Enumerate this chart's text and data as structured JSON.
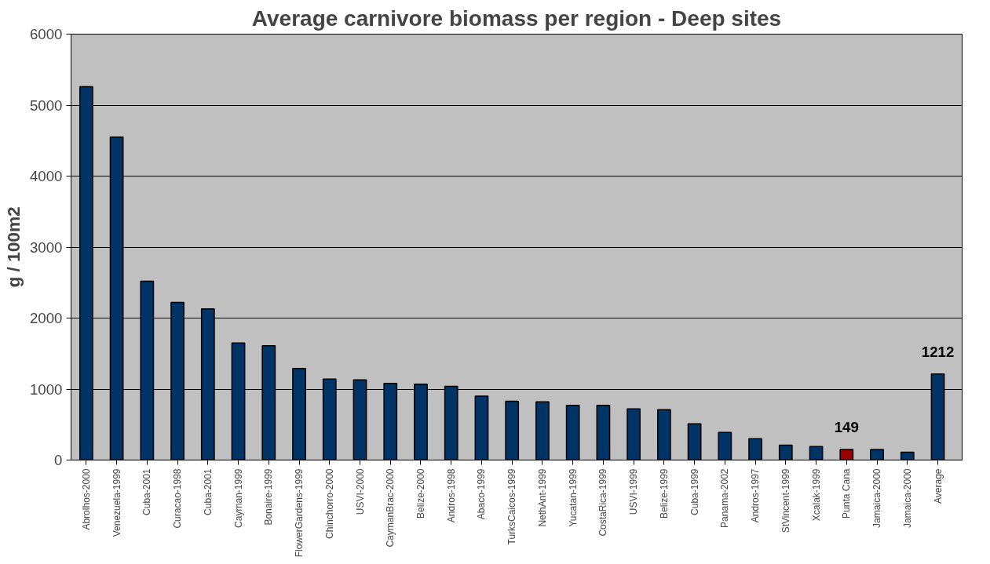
{
  "chart_data": {
    "type": "bar",
    "title": "Average carnivore biomass per region - Deep sites",
    "ylabel": "g / 100m2",
    "categories": [
      "Abrolhos-2000",
      "Venezuela-1999",
      "Cuba-2001",
      "Curacao-1998",
      "Cuba-2001",
      "Cayman-1999",
      "Bonaire-1999",
      "FlowerGardens-1999",
      "Chinchorro-2000",
      "USVI-2000",
      "CaymanBrac-2000",
      "Belize-2000",
      "Andros-1998",
      "Abaco-1999",
      "TurksCaicos-1999",
      "NethAnt-1999",
      "Yucatan-1999",
      "CostaRica-1999",
      "USVI-1999",
      "Belize-1999",
      "Cuba-1999",
      "Panama-2002",
      "Andros-1997",
      "StVincent-1999",
      "Xcalak-1999",
      "Punta Cana",
      "Jamaica-2000",
      "Jamaica-2000",
      "Average"
    ],
    "values": [
      5260,
      4550,
      2520,
      2220,
      2130,
      1650,
      1610,
      1290,
      1140,
      1130,
      1080,
      1070,
      1040,
      900,
      830,
      820,
      770,
      770,
      720,
      710,
      510,
      390,
      300,
      210,
      190,
      149,
      150,
      110,
      1212
    ],
    "colors": [
      "#003366",
      "#003366",
      "#003366",
      "#003366",
      "#003366",
      "#003366",
      "#003366",
      "#003366",
      "#003366",
      "#003366",
      "#003366",
      "#003366",
      "#003366",
      "#003366",
      "#003366",
      "#003366",
      "#003366",
      "#003366",
      "#003366",
      "#003366",
      "#003366",
      "#003366",
      "#003366",
      "#003366",
      "#003366",
      "#990000",
      "#003366",
      "#003366",
      "#003366"
    ],
    "value_labels": [
      null,
      null,
      null,
      null,
      null,
      null,
      null,
      null,
      null,
      null,
      null,
      null,
      null,
      null,
      null,
      null,
      null,
      null,
      null,
      null,
      null,
      null,
      null,
      null,
      null,
      "149",
      null,
      null,
      "1212"
    ],
    "ylim": [
      0,
      6000
    ],
    "yticks": [
      0,
      1000,
      2000,
      3000,
      4000,
      5000,
      6000
    ],
    "grid": "y"
  }
}
